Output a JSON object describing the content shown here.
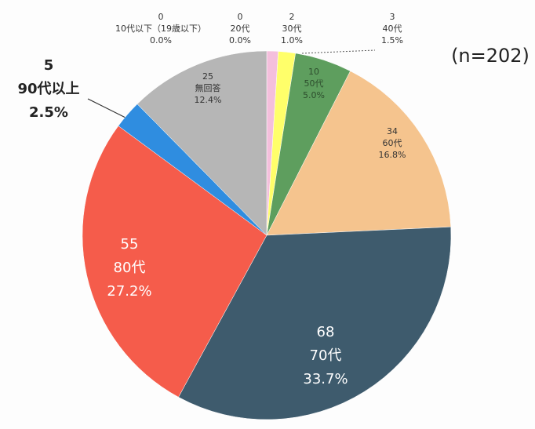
{
  "chart_data": {
    "type": "pie",
    "title": "(n=202)",
    "categories": [
      "10代以下（19歳以下）",
      "20代",
      "30代",
      "40代",
      "50代",
      "60代",
      "70代",
      "80代",
      "90代以上",
      "無回答"
    ],
    "counts": [
      0,
      0,
      2,
      3,
      10,
      34,
      68,
      55,
      5,
      25
    ],
    "values": [
      0.0,
      0.0,
      1.0,
      1.5,
      5.0,
      16.8,
      33.7,
      27.2,
      2.5,
      12.4
    ],
    "value_labels": [
      "0.0%",
      "0.0%",
      "1.0%",
      "1.5%",
      "5.0%",
      "16.8%",
      "33.7%",
      "27.2%",
      "2.5%",
      "12.4%"
    ],
    "colors": [
      "#e0a0c8",
      "#f0b8d8",
      "#f4bfdc",
      "#ffff6a",
      "#5e9e5e",
      "#f5c48e",
      "#3e5b6d",
      "#f55c4b",
      "#2f8de0",
      "#b6b6b6"
    ]
  }
}
